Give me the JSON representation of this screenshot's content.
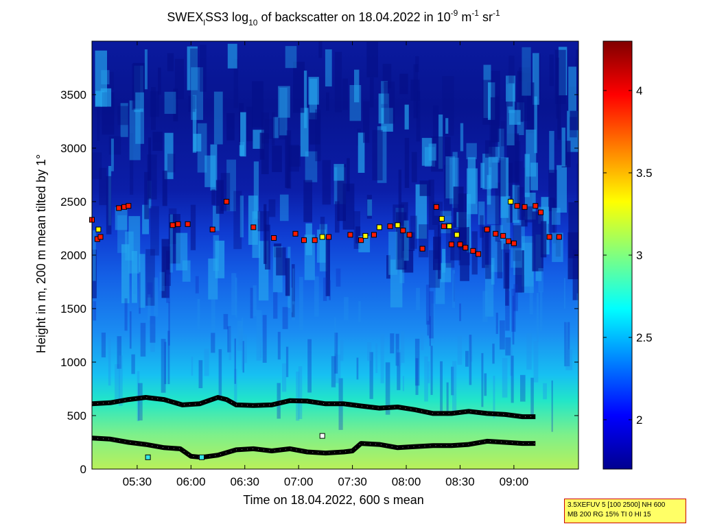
{
  "chart_data": {
    "type": "heatmap",
    "title": {
      "prefix": "SWEX",
      "sub1": "l",
      "mid": "SS3 log",
      "sub2": "10",
      "after": " of backscatter on 18.04.2022 in 10",
      "sup1": "-9",
      "unit1": " m",
      "sup2": "-1",
      "unit2": " sr",
      "sup3": "-1"
    },
    "xlabel": "Time on 18.04.2022, 600 s mean",
    "ylabel": "Height in m, 200 m mean tilted by 1°",
    "x_ticks": [
      "05:30",
      "06:00",
      "06:30",
      "07:00",
      "07:30",
      "08:00",
      "08:30",
      "09:00"
    ],
    "x_tick_hours": [
      5.5,
      6.0,
      6.5,
      7.0,
      7.5,
      8.0,
      8.5,
      9.0
    ],
    "xlim_hours": [
      5.08,
      9.6
    ],
    "y_ticks": [
      0,
      500,
      1000,
      1500,
      2000,
      2500,
      3000,
      3500
    ],
    "ylim": [
      0,
      4000
    ],
    "colorbar": {
      "ticks": [
        "2",
        "2.5",
        "3",
        "3.5",
        "4"
      ],
      "tick_values": [
        2.0,
        2.5,
        3.0,
        3.5,
        4.0
      ],
      "range": [
        1.7,
        4.3
      ],
      "colormap": "jet"
    },
    "layers": [
      {
        "name": "upper boundary",
        "hours": [
          5.08,
          5.25,
          5.42,
          5.58,
          5.75,
          5.92,
          6.08,
          6.25,
          6.33,
          6.42,
          6.58,
          6.75,
          6.92,
          7.08,
          7.25,
          7.42,
          7.58,
          7.75,
          7.92,
          8.08,
          8.25,
          8.42,
          8.58,
          8.75,
          8.92,
          9.08,
          9.2
        ],
        "heights": [
          610,
          620,
          650,
          670,
          650,
          600,
          610,
          670,
          650,
          600,
          595,
          600,
          640,
          635,
          610,
          610,
          590,
          570,
          580,
          555,
          520,
          520,
          540,
          520,
          510,
          490,
          490
        ]
      },
      {
        "name": "lower boundary",
        "hours": [
          5.08,
          5.25,
          5.42,
          5.58,
          5.75,
          5.9,
          6.0,
          6.1,
          6.25,
          6.42,
          6.58,
          6.75,
          6.92,
          7.08,
          7.25,
          7.42,
          7.5,
          7.58,
          7.75,
          7.92,
          8.08,
          8.25,
          8.42,
          8.58,
          8.75,
          8.92,
          9.08,
          9.2
        ],
        "heights": [
          290,
          280,
          250,
          230,
          200,
          190,
          120,
          110,
          130,
          180,
          190,
          170,
          190,
          160,
          150,
          160,
          170,
          240,
          230,
          200,
          210,
          220,
          220,
          230,
          260,
          250,
          240,
          240
        ]
      }
    ],
    "cloud_points": [
      {
        "t": 5.08,
        "h": 2330,
        "c": "red"
      },
      {
        "t": 5.13,
        "h": 2150,
        "c": "red"
      },
      {
        "t": 5.14,
        "h": 2240,
        "c": "yellow"
      },
      {
        "t": 5.16,
        "h": 2170,
        "c": "red"
      },
      {
        "t": 5.33,
        "h": 2440,
        "c": "red"
      },
      {
        "t": 5.38,
        "h": 2450,
        "c": "red"
      },
      {
        "t": 5.42,
        "h": 2460,
        "c": "red"
      },
      {
        "t": 5.83,
        "h": 2280,
        "c": "red"
      },
      {
        "t": 5.88,
        "h": 2290,
        "c": "red"
      },
      {
        "t": 5.97,
        "h": 2290,
        "c": "red"
      },
      {
        "t": 6.2,
        "h": 2240,
        "c": "red"
      },
      {
        "t": 6.33,
        "h": 2500,
        "c": "red"
      },
      {
        "t": 6.58,
        "h": 2260,
        "c": "red"
      },
      {
        "t": 6.77,
        "h": 2160,
        "c": "red"
      },
      {
        "t": 6.97,
        "h": 2200,
        "c": "red"
      },
      {
        "t": 7.05,
        "h": 2140,
        "c": "red"
      },
      {
        "t": 7.15,
        "h": 2140,
        "c": "red"
      },
      {
        "t": 7.22,
        "h": 2170,
        "c": "yellow"
      },
      {
        "t": 7.28,
        "h": 2170,
        "c": "red"
      },
      {
        "t": 7.48,
        "h": 2190,
        "c": "red"
      },
      {
        "t": 7.58,
        "h": 2140,
        "c": "red"
      },
      {
        "t": 7.62,
        "h": 2180,
        "c": "yellow"
      },
      {
        "t": 7.7,
        "h": 2190,
        "c": "red"
      },
      {
        "t": 7.75,
        "h": 2260,
        "c": "yellow"
      },
      {
        "t": 7.85,
        "h": 2270,
        "c": "red"
      },
      {
        "t": 7.92,
        "h": 2280,
        "c": "yellow"
      },
      {
        "t": 7.97,
        "h": 2230,
        "c": "red"
      },
      {
        "t": 8.03,
        "h": 2190,
        "c": "red"
      },
      {
        "t": 8.15,
        "h": 2060,
        "c": "red"
      },
      {
        "t": 8.28,
        "h": 2450,
        "c": "red"
      },
      {
        "t": 8.33,
        "h": 2340,
        "c": "yellow"
      },
      {
        "t": 8.35,
        "h": 2270,
        "c": "red"
      },
      {
        "t": 8.4,
        "h": 2270,
        "c": "yellow"
      },
      {
        "t": 8.42,
        "h": 2100,
        "c": "red"
      },
      {
        "t": 8.47,
        "h": 2190,
        "c": "yellow"
      },
      {
        "t": 8.5,
        "h": 2100,
        "c": "red"
      },
      {
        "t": 8.55,
        "h": 2070,
        "c": "red"
      },
      {
        "t": 8.62,
        "h": 2040,
        "c": "red"
      },
      {
        "t": 8.67,
        "h": 2010,
        "c": "red"
      },
      {
        "t": 8.75,
        "h": 2240,
        "c": "red"
      },
      {
        "t": 8.83,
        "h": 2200,
        "c": "red"
      },
      {
        "t": 8.9,
        "h": 2180,
        "c": "red"
      },
      {
        "t": 8.95,
        "h": 2130,
        "c": "red"
      },
      {
        "t": 9.0,
        "h": 2110,
        "c": "red"
      },
      {
        "t": 8.97,
        "h": 2500,
        "c": "yellow"
      },
      {
        "t": 9.03,
        "h": 2460,
        "c": "red"
      },
      {
        "t": 9.1,
        "h": 2450,
        "c": "red"
      },
      {
        "t": 9.2,
        "h": 2460,
        "c": "red"
      },
      {
        "t": 9.25,
        "h": 2400,
        "c": "red"
      },
      {
        "t": 9.33,
        "h": 2170,
        "c": "red"
      },
      {
        "t": 9.42,
        "h": 2170,
        "c": "red"
      }
    ],
    "isolated_points": [
      {
        "t": 5.6,
        "h": 110,
        "c": "cyan"
      },
      {
        "t": 6.1,
        "h": 110,
        "c": "cyan"
      },
      {
        "t": 7.22,
        "h": 310,
        "c": "white"
      }
    ]
  },
  "settings_box": {
    "line1": "3.5XEFUV 5 [100 2500] NH 600",
    "line2": "MB 200 RG 15% TI 0 HI 15"
  }
}
